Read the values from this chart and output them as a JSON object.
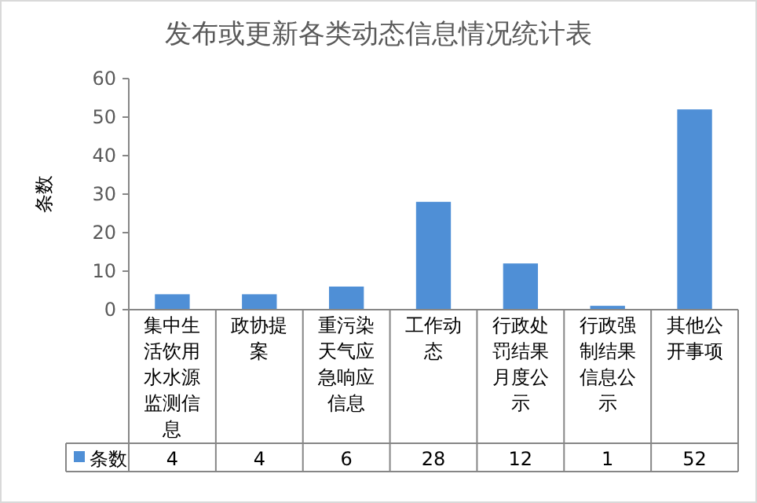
{
  "chart_data": {
    "type": "bar",
    "title": "发布或更新各类动态信息情况统计表",
    "ylabel": "条数",
    "categories": [
      "集中生活饮用水水源监测信息",
      "政协提案",
      "重污染天气应急响应信息",
      "工作动态",
      "行政处罚结果月度公示",
      "行政强制结果信息公示",
      "其他公开事项"
    ],
    "series": [
      {
        "name": "条数",
        "color": "#4f8fd6",
        "values": [
          4,
          4,
          6,
          28,
          12,
          1,
          52
        ]
      }
    ],
    "ylim": [
      0,
      60
    ],
    "yticks": [
      0,
      10,
      20,
      30,
      40,
      50,
      60
    ],
    "data_labels": true,
    "legend": "bottom left"
  }
}
